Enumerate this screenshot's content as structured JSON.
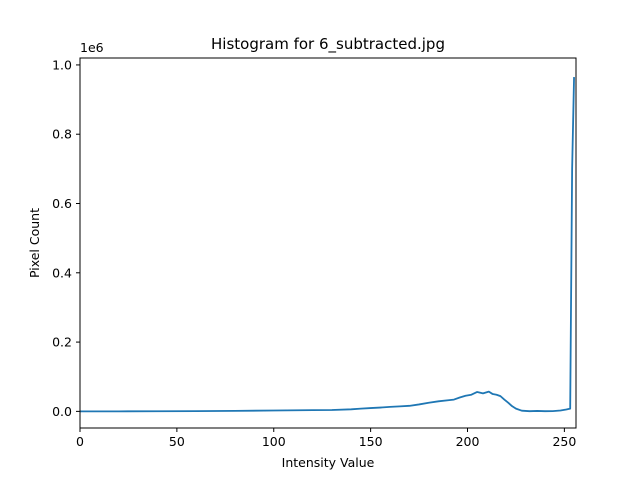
{
  "chart_data": {
    "type": "line",
    "title": "Histogram for 6_subtracted.jpg",
    "xlabel": "Intensity Value",
    "ylabel": "Pixel Count",
    "y_offset_text": "1e6",
    "xlim": [
      0,
      256
    ],
    "ylim": [
      -0.048,
      1.02
    ],
    "y_scale_factor": 1000000,
    "grid": false,
    "legend": "none",
    "line_color": "#1f77b4",
    "xticks": [
      0,
      50,
      100,
      150,
      200,
      250
    ],
    "yticks": [
      0.0,
      0.2,
      0.4,
      0.6,
      0.8,
      1.0
    ],
    "ytick_labels": [
      "0.0",
      "0.2",
      "0.4",
      "0.6",
      "0.8",
      "1.0"
    ],
    "series": [
      {
        "x": [
          0,
          20,
          40,
          60,
          80,
          100,
          120,
          130,
          140,
          145,
          150,
          155,
          160,
          165,
          170,
          175,
          180,
          185,
          190,
          193,
          196,
          199,
          202,
          205,
          208,
          211,
          213,
          215,
          217,
          219,
          221,
          223,
          225,
          228,
          232,
          236,
          240,
          244,
          248,
          251,
          253,
          254,
          255
        ],
        "y": [
          0,
          100,
          300,
          800,
          1500,
          2500,
          3500,
          4000,
          6000,
          8000,
          9500,
          11000,
          13000,
          14500,
          16000,
          20000,
          25000,
          29000,
          32000,
          34000,
          40000,
          45000,
          48000,
          56000,
          52000,
          57000,
          50000,
          48000,
          44000,
          34000,
          25000,
          15000,
          8000,
          2000,
          500,
          1200,
          500,
          800,
          2500,
          5500,
          8000,
          700000,
          965000
        ]
      }
    ]
  }
}
